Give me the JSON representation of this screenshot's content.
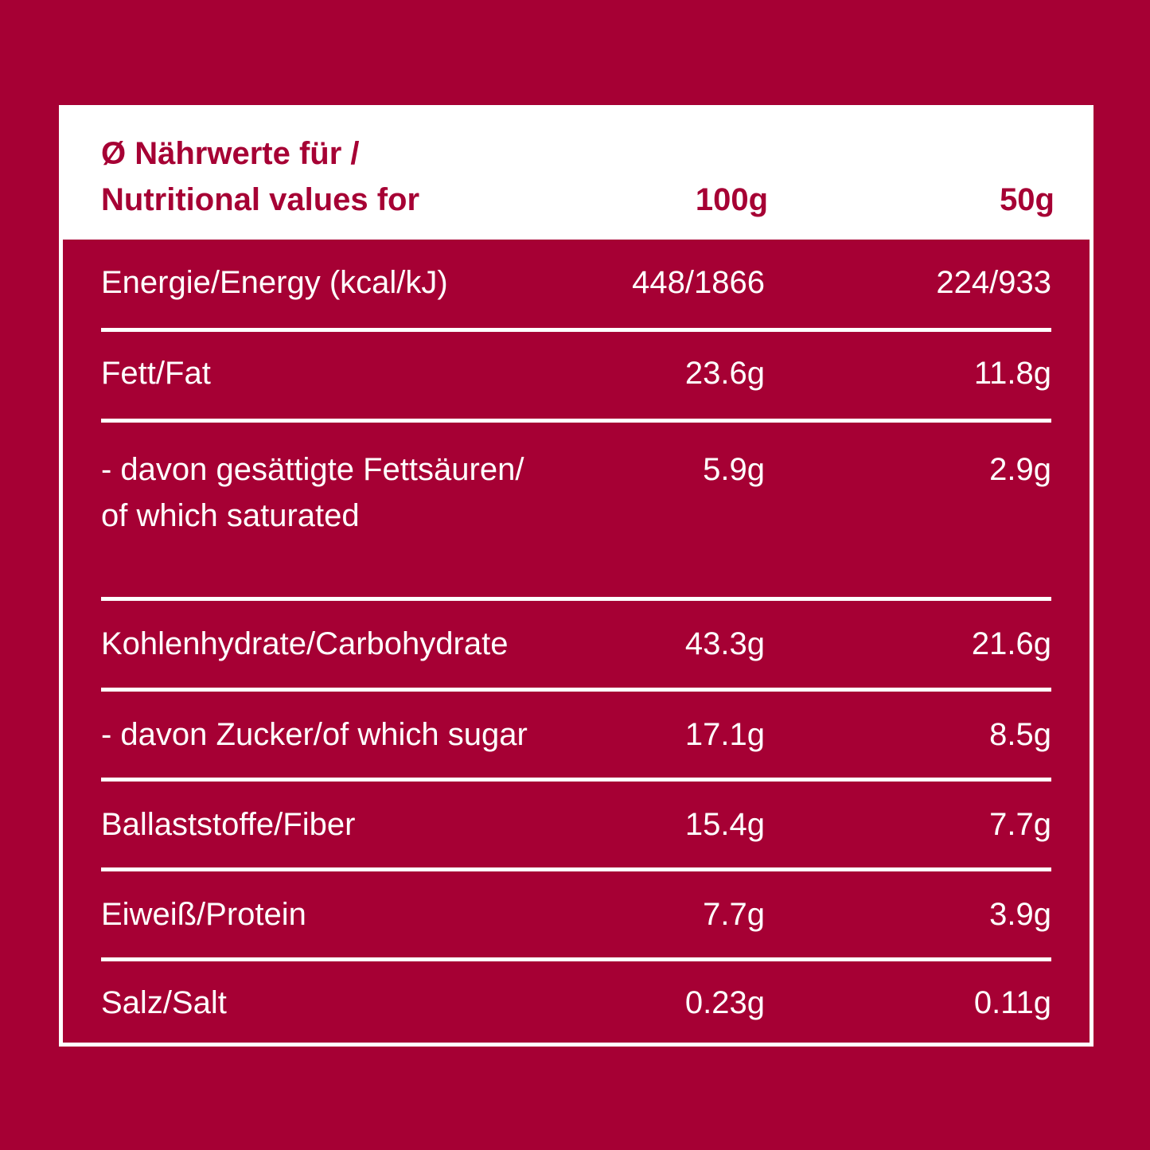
{
  "header": {
    "title_line1": "Ø Nährwerte für /",
    "title_line2": "Nutritional values for",
    "col1": "100g",
    "col2": "50g"
  },
  "rows": [
    {
      "label": "Energie/Energy (kcal/kJ)",
      "v100": "448/1866",
      "v50": "224/933"
    },
    {
      "label": "Fett/Fat",
      "v100": "23.6g",
      "v50": "11.8g"
    },
    {
      "label": "- davon gesättigte Fettsäuren/",
      "label2": "of which saturated",
      "v100": "5.9g",
      "v50": "2.9g"
    },
    {
      "label": "Kohlenhydrate/Carbohydrate",
      "v100": "43.3g",
      "v50": "21.6g"
    },
    {
      "label": "- davon Zucker/of which sugar",
      "v100": "17.1g",
      "v50": "8.5g"
    },
    {
      "label": "Ballaststoffe/Fiber",
      "v100": "15.4g",
      "v50": "7.7g"
    },
    {
      "label": "Eiweiß/Protein",
      "v100": "7.7g",
      "v50": "3.9g"
    },
    {
      "label": "Salz/Salt",
      "v100": "0.23g",
      "v50": "0.11g"
    }
  ],
  "colors": {
    "brand": "#a60034",
    "text": "#ffffff"
  }
}
